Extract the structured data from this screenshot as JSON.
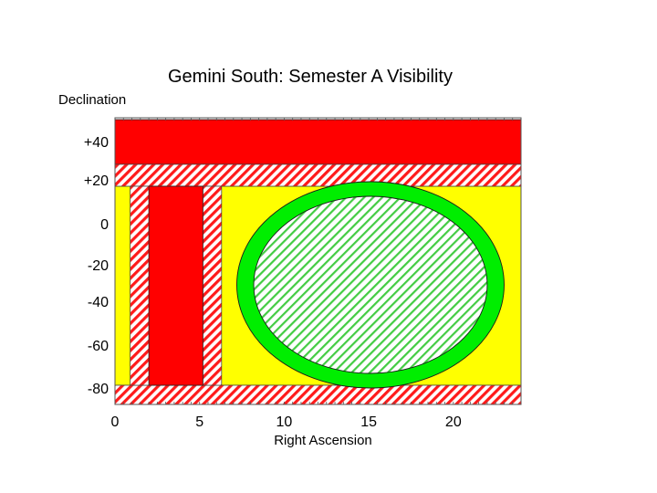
{
  "chart_data": {
    "type": "area",
    "title": "Gemini South: Semester A Visibility",
    "xlabel": "Right Ascension",
    "ylabel": "Declination",
    "xlim": [
      0,
      24
    ],
    "x_ticks": [
      {
        "value": 0,
        "label": "0"
      },
      {
        "value": 5,
        "label": "5"
      },
      {
        "value": 10,
        "label": "10"
      },
      {
        "value": 15,
        "label": "15"
      },
      {
        "value": 20,
        "label": "20"
      }
    ],
    "y_ticks": [
      {
        "label": "+40"
      },
      {
        "label": "+20"
      },
      {
        "label": "0"
      },
      {
        "label": "-20"
      },
      {
        "label": "-40"
      },
      {
        "label": "-60"
      },
      {
        "label": "-80"
      }
    ],
    "regions": [
      {
        "shape": "rect",
        "fill": "solid",
        "color": "#ffff00",
        "ra": [
          0,
          24
        ],
        "dec_band": [
          2,
          6
        ]
      },
      {
        "shape": "rect",
        "fill": "solid",
        "color": "#ff0000",
        "ra": [
          0,
          24
        ],
        "dec_band": [
          0,
          1
        ]
      },
      {
        "shape": "rect",
        "fill": "hatch",
        "color": "#ff0000",
        "ra": [
          0,
          24
        ],
        "dec_band": [
          1,
          2
        ]
      },
      {
        "shape": "rect",
        "fill": "hatch",
        "color": "#ff0000",
        "ra": [
          0,
          24
        ],
        "dec_band": [
          6,
          7
        ]
      },
      {
        "shape": "rect",
        "fill": "hatch",
        "color": "#ff0000",
        "ra": [
          0.9,
          6.3
        ],
        "dec_band": [
          2,
          6
        ]
      },
      {
        "shape": "rect",
        "fill": "solid",
        "color": "#ff0000",
        "ra": [
          2.0,
          5.2
        ],
        "dec_band": [
          2,
          6
        ]
      },
      {
        "shape": "ellipse",
        "fill": "solid",
        "color": "#00ee00",
        "ra_center": 15.1,
        "ra_halfwidth": 7.9
      },
      {
        "shape": "ellipse",
        "fill": "hatch",
        "color": "#00ee00",
        "ra_center": 15.1,
        "ra_halfwidth": 6.9
      }
    ]
  }
}
